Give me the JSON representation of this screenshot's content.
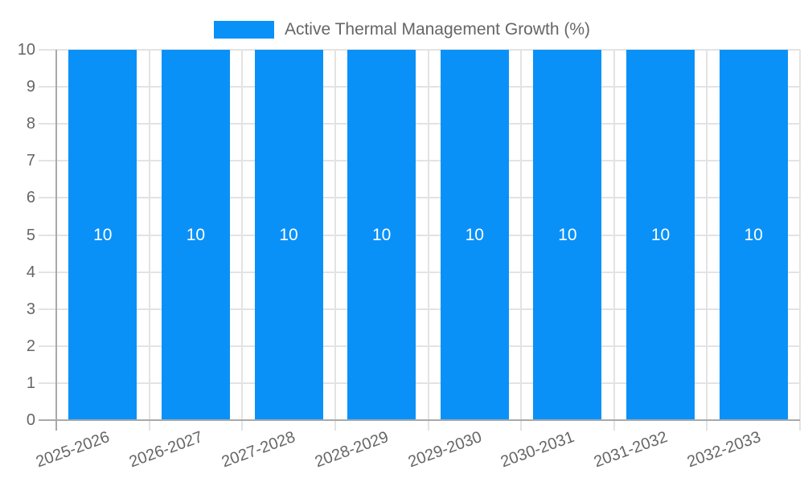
{
  "legend": {
    "label": "Active Thermal Management Growth (%)"
  },
  "chart_data": {
    "type": "bar",
    "title": "",
    "categories": [
      "2025-2026",
      "2026-2027",
      "2027-2028",
      "2028-2029",
      "2029-2030",
      "2030-2031",
      "2031-2032",
      "2032-2033"
    ],
    "series": [
      {
        "name": "Active Thermal Management Growth (%)",
        "values": [
          10,
          10,
          10,
          10,
          10,
          10,
          10,
          10
        ]
      }
    ],
    "bar_value_labels": [
      "10",
      "10",
      "10",
      "10",
      "10",
      "10",
      "10",
      "10"
    ],
    "xlabel": "",
    "ylabel": "",
    "ylim": [
      0,
      10
    ],
    "yticks": [
      "0",
      "1",
      "2",
      "3",
      "4",
      "5",
      "6",
      "7",
      "8",
      "9",
      "10"
    ],
    "grid": true,
    "legend_position": "top-center",
    "x_label_rotation_deg": -20,
    "colors": {
      "bar": "#0a91f8",
      "bar_value_label": "#ffffff",
      "axis_text": "#666666",
      "grid_line": "#e3e3e3",
      "axis_line": "#a9a9a9"
    }
  }
}
